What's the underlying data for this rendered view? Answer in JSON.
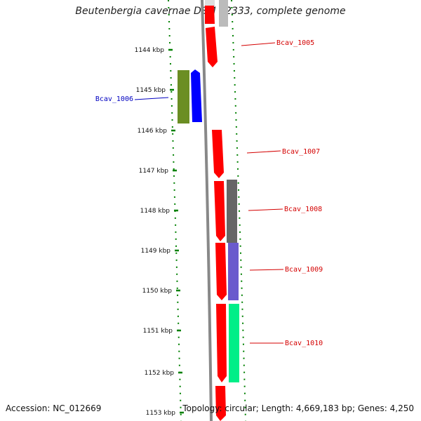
{
  "title": "Beutenbergia cavernae DSM 12333, complete genome",
  "footer": {
    "accession": "Accession: NC_012669",
    "topology": "Topology: circular; Length: 4,669,183 bp; Genes: 4,250"
  },
  "ticks": [
    {
      "label": "1144 kbp"
    },
    {
      "label": "1145 kbp"
    },
    {
      "label": "1146 kbp"
    },
    {
      "label": "1147 kbp"
    },
    {
      "label": "1148 kbp"
    },
    {
      "label": "1149 kbp"
    },
    {
      "label": "1150 kbp"
    },
    {
      "label": "1151 kbp"
    },
    {
      "label": "1152 kbp"
    },
    {
      "label": "1153 kbp"
    }
  ],
  "genes": [
    {
      "name": "Bcav_1005",
      "color": "#d40000"
    },
    {
      "name": "Bcav_1006",
      "color": "#0000c0"
    },
    {
      "name": "Bcav_1007",
      "color": "#d40000"
    },
    {
      "name": "Bcav_1008",
      "color": "#d40000"
    },
    {
      "name": "Bcav_1009",
      "color": "#d40000"
    },
    {
      "name": "Bcav_1010",
      "color": "#d40000"
    }
  ],
  "colors": {
    "cds_red": "#ff0000",
    "cds_blue": "#0000ff",
    "cds_olive": "#6b8e23",
    "cds_gray": "#666666",
    "cds_slate": "#6a5acd",
    "cds_green": "#00ee88",
    "backbone": "#888888",
    "gc_dots": "#008000"
  }
}
